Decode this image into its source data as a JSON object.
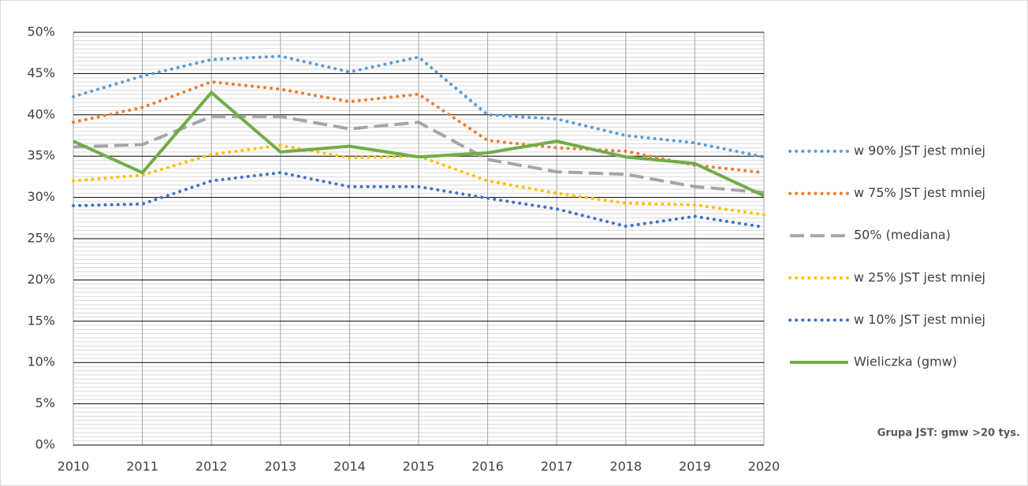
{
  "chart_data": {
    "type": "line",
    "x": [
      "2010",
      "2011",
      "2012",
      "2013",
      "2014",
      "2015",
      "2016",
      "2017",
      "2018",
      "2019",
      "2020"
    ],
    "ylim": [
      0,
      50
    ],
    "yticks": [
      {
        "value": 0,
        "label": "0%"
      },
      {
        "value": 5,
        "label": "5%"
      },
      {
        "value": 10,
        "label": "10%"
      },
      {
        "value": 15,
        "label": "15%"
      },
      {
        "value": 20,
        "label": "20%"
      },
      {
        "value": 25,
        "label": "25%"
      },
      {
        "value": 30,
        "label": "30%"
      },
      {
        "value": 35,
        "label": "35%"
      },
      {
        "value": 40,
        "label": "40%"
      },
      {
        "value": 45,
        "label": "45%"
      },
      {
        "value": 50,
        "label": "50%"
      }
    ],
    "grid": true,
    "minor_grid": true,
    "legend": "right",
    "annotation": "Grupa JST: gmw >20 tys.",
    "series": [
      {
        "name": "w 90% JST jest mniej",
        "color": "#5b9bd5",
        "style": "dotted",
        "values": [
          42.2,
          44.7,
          46.7,
          47.1,
          45.2,
          47.0,
          40.0,
          39.5,
          37.5,
          36.6,
          34.9
        ]
      },
      {
        "name": "w 75% JST jest mniej",
        "color": "#ed7d31",
        "style": "dotted",
        "values": [
          39.1,
          40.9,
          44.0,
          43.1,
          41.6,
          42.5,
          36.9,
          36.0,
          35.6,
          33.9,
          33.0
        ]
      },
      {
        "name": "50% (mediana)",
        "color": "#a5a5a5",
        "style": "dashed",
        "values": [
          36.1,
          36.4,
          39.8,
          39.8,
          38.3,
          39.1,
          34.6,
          33.1,
          32.8,
          31.3,
          30.6
        ]
      },
      {
        "name": "w 25% JST jest mniej",
        "color": "#ffc000",
        "style": "dotted",
        "values": [
          32.0,
          32.7,
          35.2,
          36.3,
          34.8,
          35.0,
          32.0,
          30.5,
          29.3,
          29.1,
          27.9
        ]
      },
      {
        "name": "w 10% JST jest mniej",
        "color": "#4472c4",
        "style": "dotted",
        "values": [
          29.0,
          29.2,
          32.0,
          33.0,
          31.3,
          31.3,
          29.9,
          28.6,
          26.5,
          27.7,
          26.4
        ]
      },
      {
        "name": "Wieliczka (gmw)",
        "color": "#70ad47",
        "style": "solid",
        "values": [
          36.8,
          33.0,
          42.7,
          35.5,
          36.2,
          34.9,
          35.4,
          36.8,
          34.9,
          34.1,
          30.2
        ]
      }
    ]
  }
}
